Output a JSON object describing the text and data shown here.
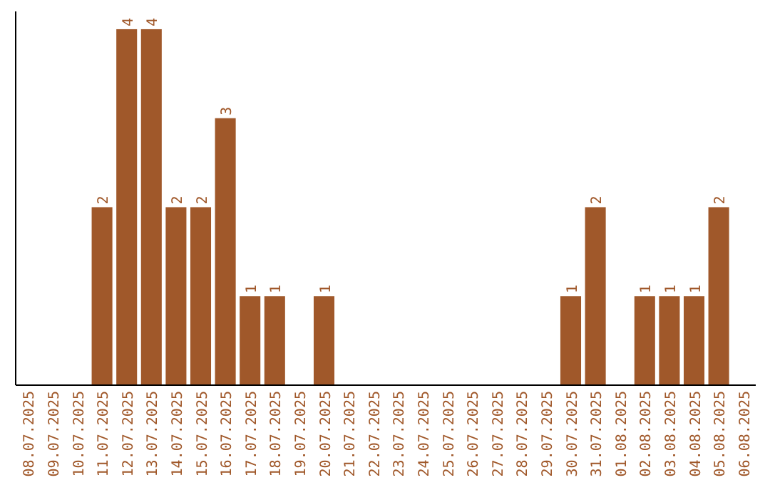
{
  "chart_data": {
    "type": "bar",
    "color": "#a0582a",
    "categories": [
      "08.07.2025",
      "09.07.2025",
      "10.07.2025",
      "11.07.2025",
      "12.07.2025",
      "13.07.2025",
      "14.07.2025",
      "15.07.2025",
      "16.07.2025",
      "17.07.2025",
      "18.07.2025",
      "19.07.2025",
      "20.07.2025",
      "21.07.2025",
      "22.07.2025",
      "23.07.2025",
      "24.07.2025",
      "25.07.2025",
      "26.07.2025",
      "27.07.2025",
      "28.07.2025",
      "29.07.2025",
      "30.07.2025",
      "31.07.2025",
      "01.08.2025",
      "02.08.2025",
      "03.08.2025",
      "04.08.2025",
      "05.08.2025",
      "06.08.2025"
    ],
    "values": [
      0,
      0,
      0,
      2,
      4,
      4,
      2,
      2,
      3,
      1,
      1,
      0,
      1,
      0,
      0,
      0,
      0,
      0,
      0,
      0,
      0,
      0,
      1,
      2,
      0,
      1,
      1,
      1,
      2,
      0
    ],
    "value_labels": [
      null,
      null,
      null,
      "2",
      "4",
      "4",
      "2",
      "2",
      "3",
      "1",
      "1",
      null,
      "1",
      null,
      null,
      null,
      null,
      null,
      null,
      null,
      null,
      null,
      "1",
      "2",
      null,
      "1",
      "1",
      "1",
      "2",
      null
    ]
  }
}
